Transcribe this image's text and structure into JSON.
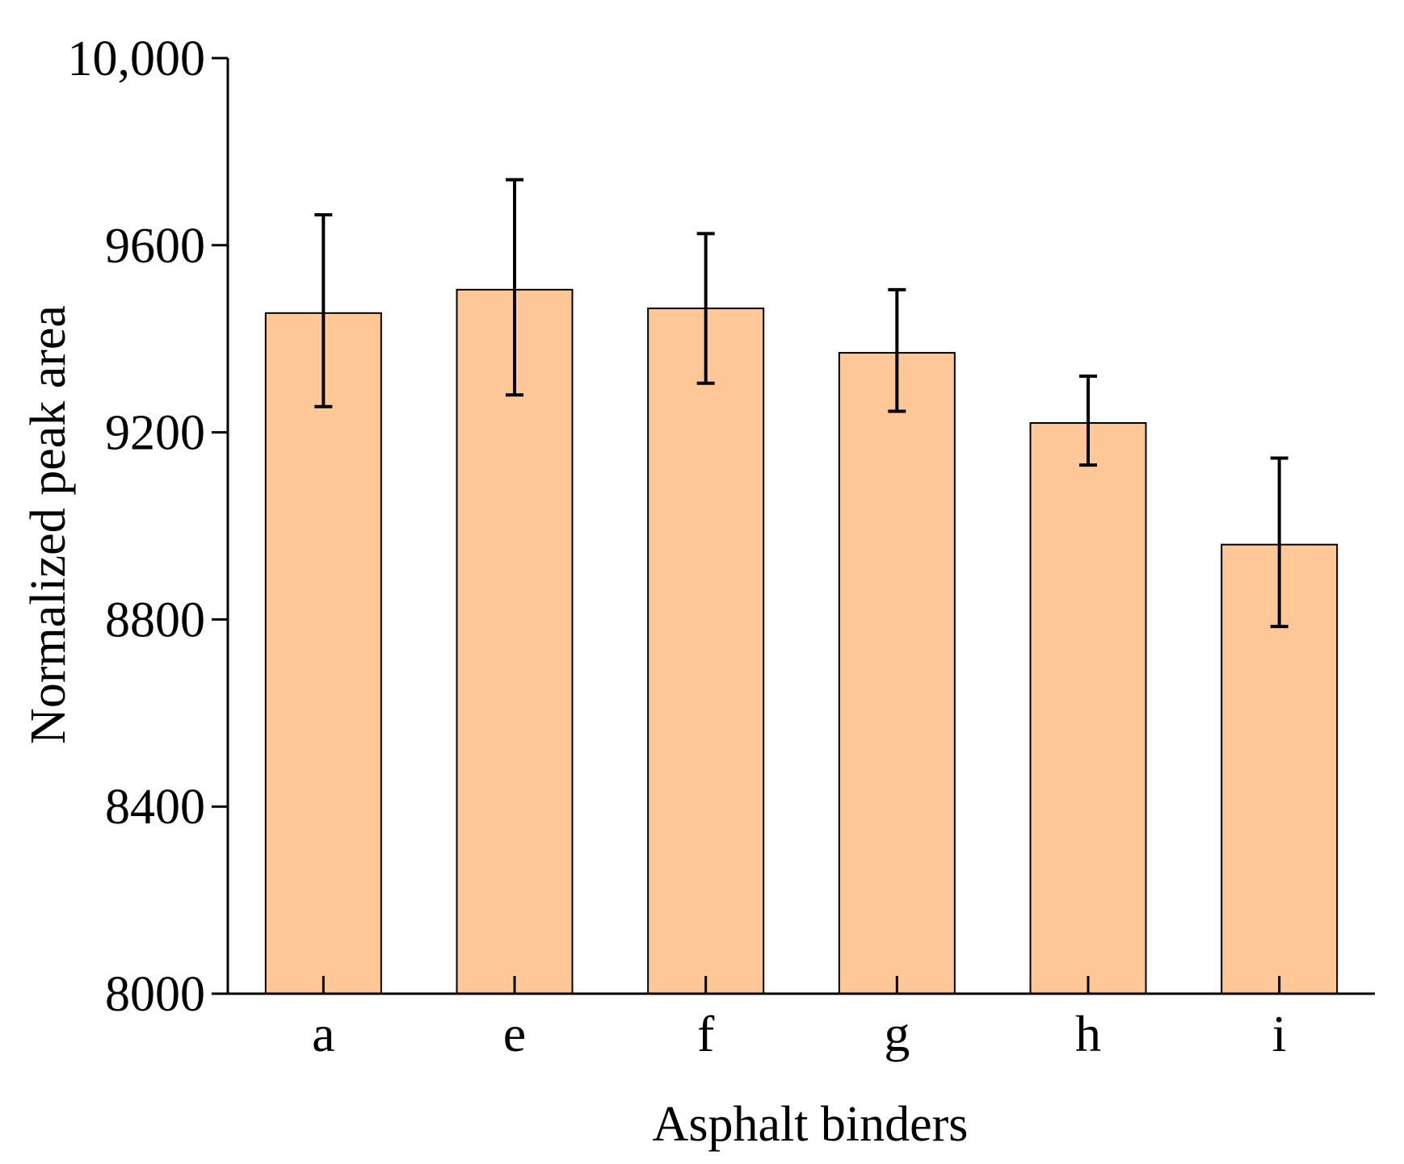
{
  "chart_data": {
    "type": "bar",
    "title": "",
    "xlabel": "Asphalt binders",
    "ylabel": "Normalized peak area",
    "categories": [
      "a",
      "e",
      "f",
      "g",
      "h",
      "i"
    ],
    "series": [
      {
        "values": [
          9455,
          9505,
          9465,
          9370,
          9220,
          8960
        ],
        "error_low": [
          9255,
          9280,
          9305,
          9245,
          9130,
          8785
        ],
        "error_high": [
          9665,
          9740,
          9625,
          9505,
          9320,
          9145
        ]
      }
    ],
    "ylim": [
      8000,
      10000
    ],
    "yticks": [
      8000,
      8400,
      8800,
      9200,
      9600,
      10000
    ],
    "ytick_labels": [
      "8000",
      "8400",
      "8800",
      "9200",
      "9600",
      "10,000"
    ],
    "grid": false,
    "legend": "none",
    "colors": {
      "bar_fill": "#FFC896",
      "bar_stroke": "#000000",
      "axis": "#000000",
      "error_bar": "#000000"
    }
  }
}
